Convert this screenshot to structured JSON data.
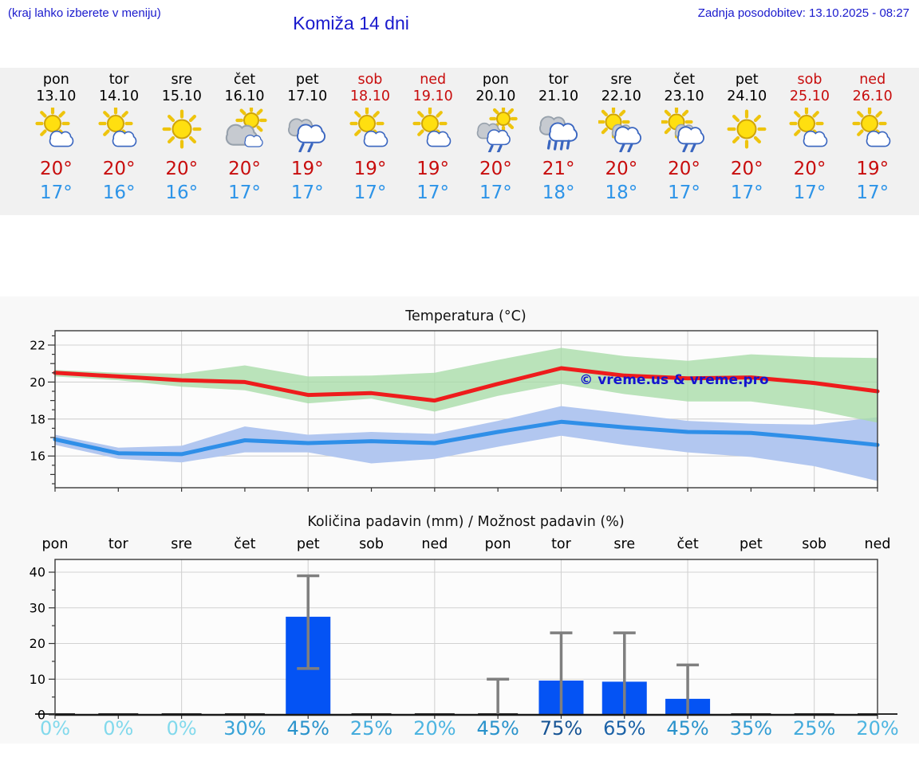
{
  "header": {
    "hint": "(kraj lahko izberete v meniju)",
    "title": "Komiža 14 dni",
    "updated": "Zadnja posodobitev: 13.10.2025 - 08:27"
  },
  "days": [
    {
      "name": "pon",
      "date": "13.10",
      "icon": "sun-cloud",
      "hi": "20°",
      "lo": "17°",
      "weekend": false
    },
    {
      "name": "tor",
      "date": "14.10",
      "icon": "sun-cloud",
      "hi": "20°",
      "lo": "16°",
      "weekend": false
    },
    {
      "name": "sre",
      "date": "15.10",
      "icon": "sun",
      "hi": "20°",
      "lo": "16°",
      "weekend": false
    },
    {
      "name": "čet",
      "date": "16.10",
      "icon": "cloud-sun",
      "hi": "20°",
      "lo": "17°",
      "weekend": false
    },
    {
      "name": "pet",
      "date": "17.10",
      "icon": "rain",
      "hi": "19°",
      "lo": "17°",
      "weekend": false
    },
    {
      "name": "sob",
      "date": "18.10",
      "icon": "sun-cloud",
      "hi": "19°",
      "lo": "17°",
      "weekend": true
    },
    {
      "name": "ned",
      "date": "19.10",
      "icon": "sun-cloud",
      "hi": "19°",
      "lo": "17°",
      "weekend": true
    },
    {
      "name": "pon",
      "date": "20.10",
      "icon": "sun-rain",
      "hi": "20°",
      "lo": "17°",
      "weekend": false
    },
    {
      "name": "tor",
      "date": "21.10",
      "icon": "heavy-rain",
      "hi": "21°",
      "lo": "18°",
      "weekend": false
    },
    {
      "name": "sre",
      "date": "22.10",
      "icon": "sun-cloud-rain",
      "hi": "20°",
      "lo": "18°",
      "weekend": false
    },
    {
      "name": "čet",
      "date": "23.10",
      "icon": "sun-cloud-rain",
      "hi": "20°",
      "lo": "17°",
      "weekend": false
    },
    {
      "name": "pet",
      "date": "24.10",
      "icon": "sun",
      "hi": "20°",
      "lo": "17°",
      "weekend": false
    },
    {
      "name": "sob",
      "date": "25.10",
      "icon": "sun-cloud",
      "hi": "20°",
      "lo": "17°",
      "weekend": true
    },
    {
      "name": "ned",
      "date": "26.10",
      "icon": "sun-cloud",
      "hi": "19°",
      "lo": "17°",
      "weekend": true
    }
  ],
  "chart_data": [
    {
      "type": "line",
      "title": "Temperatura (°C)",
      "watermark": "© vreme.us & vreme.pro",
      "categories": [
        "pon 13.10",
        "tor 14.10",
        "sre 15.10",
        "čet 16.10",
        "pet 17.10",
        "sob 18.10",
        "ned 19.10",
        "pon 20.10",
        "tor 21.10",
        "sre 22.10",
        "čet 23.10",
        "pet 24.10",
        "sob 25.10",
        "ned 26.10"
      ],
      "ylim": [
        14.3,
        22.8
      ],
      "yticks": [
        16,
        18,
        20,
        22
      ],
      "grid": true,
      "series": [
        {
          "name": "max-temp",
          "color": "#ee1c1c",
          "values": [
            20.5,
            20.3,
            20.1,
            20.0,
            19.3,
            19.4,
            19.0,
            19.9,
            20.75,
            20.35,
            20.2,
            20.25,
            19.95,
            19.5
          ]
        },
        {
          "name": "max-temp-range",
          "color": "#a9dca9",
          "upper": [
            20.65,
            20.5,
            20.45,
            20.9,
            20.3,
            20.35,
            20.5,
            21.2,
            21.85,
            21.4,
            21.15,
            21.5,
            21.35,
            21.3
          ],
          "lower": [
            20.3,
            20.1,
            19.75,
            19.55,
            18.85,
            19.1,
            18.4,
            19.25,
            19.9,
            19.35,
            18.95,
            18.95,
            18.5,
            17.8
          ]
        },
        {
          "name": "min-temp",
          "color": "#2f8fe8",
          "values": [
            16.9,
            16.15,
            16.1,
            16.85,
            16.7,
            16.8,
            16.7,
            17.3,
            17.85,
            17.55,
            17.3,
            17.25,
            16.95,
            16.6
          ]
        },
        {
          "name": "min-temp-range",
          "color": "#b2c7f0",
          "upper": [
            17.15,
            16.45,
            16.55,
            17.6,
            17.15,
            17.3,
            17.2,
            17.9,
            18.7,
            18.3,
            17.9,
            17.75,
            17.7,
            18.1
          ],
          "lower": [
            16.6,
            15.85,
            15.65,
            16.2,
            16.2,
            15.6,
            15.85,
            16.5,
            17.1,
            16.6,
            16.2,
            15.95,
            15.45,
            14.65
          ]
        }
      ]
    },
    {
      "type": "bar",
      "title": "Količina padavin (mm) / Možnost padavin (%)",
      "categories": [
        "pon",
        "tor",
        "sre",
        "čet",
        "pet",
        "sob",
        "ned",
        "pon",
        "tor",
        "sre",
        "čet",
        "pet",
        "sob",
        "ned"
      ],
      "ylim": [
        0,
        43.5
      ],
      "yticks": [
        0,
        10,
        20,
        30,
        40
      ],
      "grid": true,
      "bar_color": "#0453f4",
      "values": [
        0.2,
        0.2,
        0.2,
        0.2,
        27.5,
        0.2,
        0.2,
        0.4,
        9.6,
        9.3,
        4.5,
        0.2,
        0.2,
        0.2
      ],
      "error_low": [
        null,
        null,
        null,
        null,
        13,
        null,
        null,
        0,
        0,
        0,
        0,
        null,
        null,
        null
      ],
      "error_high": [
        null,
        null,
        null,
        null,
        39,
        null,
        null,
        10,
        23,
        23,
        14,
        null,
        null,
        null
      ],
      "probabilities": [
        "0%",
        "0%",
        "0%",
        "30%",
        "45%",
        "25%",
        "20%",
        "45%",
        "75%",
        "65%",
        "45%",
        "35%",
        "25%",
        "20%"
      ],
      "probability_colors": [
        "#82d9ec",
        "#82d9ec",
        "#82d9ec",
        "#38a3d7",
        "#2892cb",
        "#43abdc",
        "#4db5e1",
        "#2892cb",
        "#155394",
        "#1b62a7",
        "#2892cb",
        "#339dd4",
        "#43abdc",
        "#4db5e1"
      ]
    }
  ],
  "colors": {
    "header_blue": "#1a1acd",
    "weekend_red": "#c80d0d",
    "high_temp_red": "#c80d0d",
    "low_temp_blue": "#2d94e8",
    "strip_background": "#f1f1f1",
    "chart_background": "#f8f8f8"
  }
}
